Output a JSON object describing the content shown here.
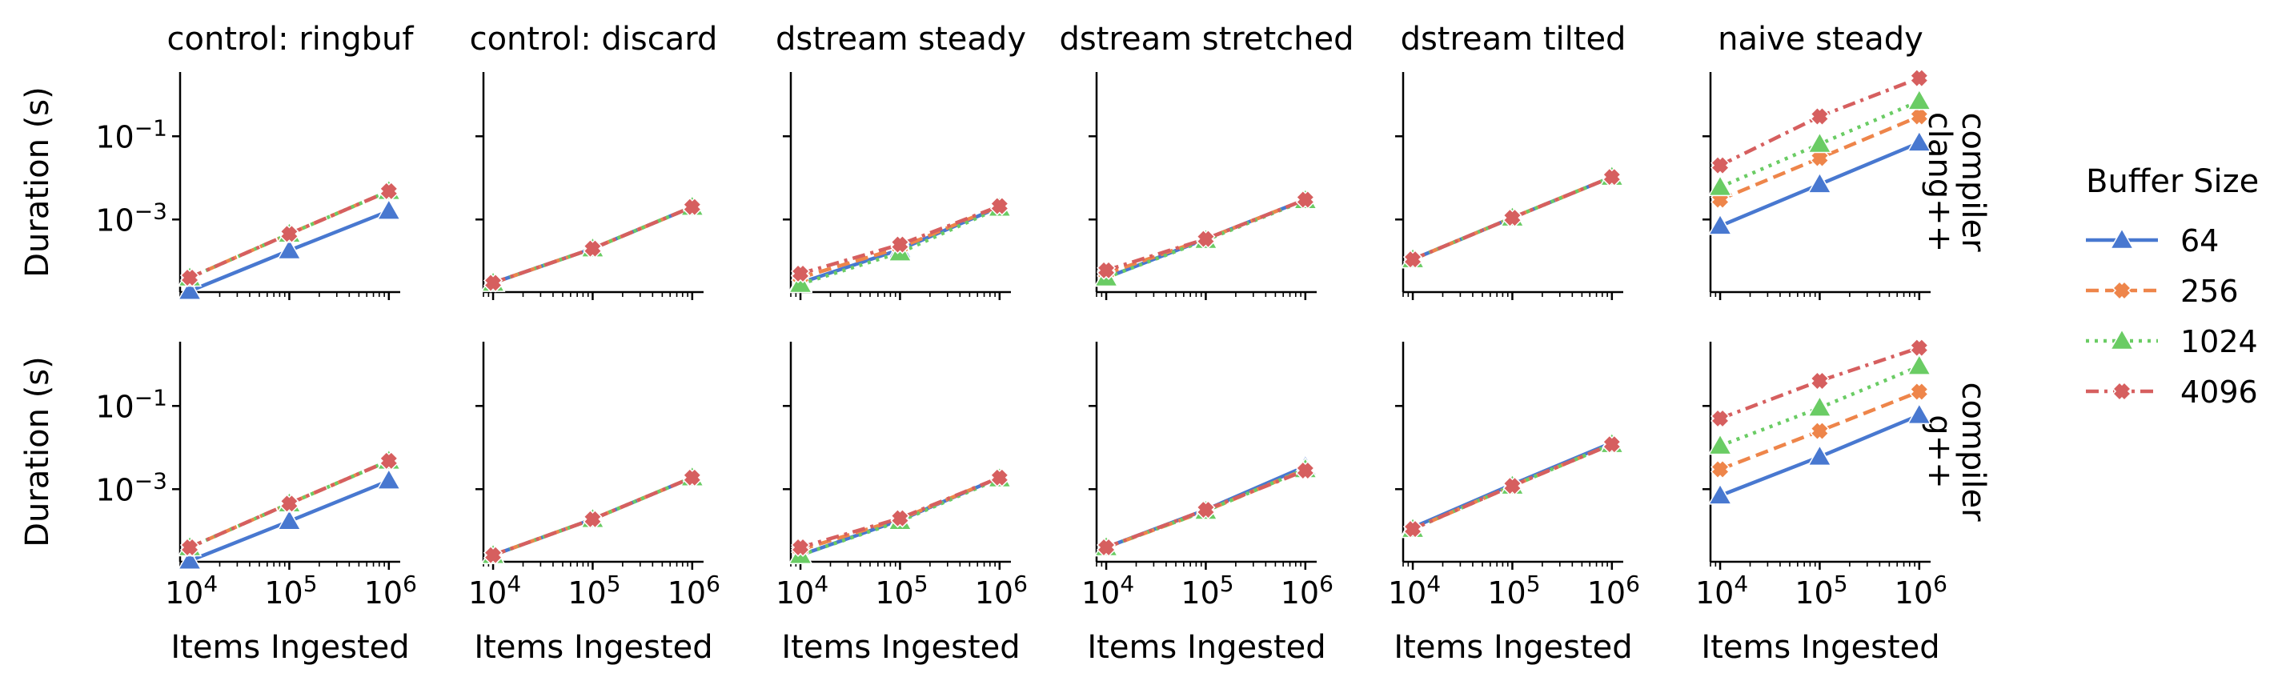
{
  "chart_data": {
    "type": "line",
    "ylabel": "Duration (s)",
    "xlabel": "Items Ingested",
    "xscale": "log",
    "yscale": "log",
    "x": [
      10000,
      100000,
      1000000
    ],
    "xticks": [
      {
        "value": 10000,
        "base": "10",
        "exp": "4"
      },
      {
        "value": 100000,
        "base": "10",
        "exp": "5"
      },
      {
        "value": 1000000,
        "base": "10",
        "exp": "6"
      }
    ],
    "yticks": [
      {
        "value": 0.001,
        "base": "10",
        "exp": "−3"
      },
      {
        "value": 0.1,
        "base": "10",
        "exp": "−1"
      }
    ],
    "xlim": [
      8000,
      1300000
    ],
    "ylim": [
      1.8e-05,
      3.5
    ],
    "legend": {
      "title": "Buffer Size",
      "placement": "right",
      "entries": [
        "64",
        "256",
        "1024",
        "4096"
      ]
    },
    "series_styles": [
      {
        "name": "64",
        "color": "#4878d0",
        "dash": "solid",
        "marker": "triangle"
      },
      {
        "name": "256",
        "color": "#ee854a",
        "dash": "dashed",
        "marker": "x"
      },
      {
        "name": "1024",
        "color": "#6acc64",
        "dash": "dotted",
        "marker": "triangle"
      },
      {
        "name": "4096",
        "color": "#d65f5f",
        "dash": "dashdot",
        "marker": "x"
      }
    ],
    "row_facet_label": "compiler",
    "rows": [
      "clang++",
      "g++"
    ],
    "columns": [
      "control: ringbuf",
      "control: discard",
      "dstream steady",
      "dstream stretched",
      "dstream tilted",
      "naive steady"
    ],
    "panels": [
      {
        "row": "clang++",
        "column": "control: ringbuf",
        "series": [
          [
            1.9e-05,
            0.00018,
            0.0016
          ],
          [
            4e-05,
            0.00045,
            0.0048
          ],
          [
            4e-05,
            0.00045,
            0.0048
          ],
          [
            4e-05,
            0.00045,
            0.0048
          ]
        ]
      },
      {
        "row": "clang++",
        "column": "control: discard",
        "series": [
          [
            3e-05,
            0.0002,
            0.002
          ],
          [
            3e-05,
            0.0002,
            0.002
          ],
          [
            3e-05,
            0.0002,
            0.002
          ],
          [
            3e-05,
            0.0002,
            0.002
          ]
        ]
      },
      {
        "row": "clang++",
        "column": "dstream steady",
        "series": [
          [
            3e-05,
            0.00019,
            0.002
          ],
          [
            4e-05,
            0.00021,
            0.0021
          ],
          [
            2.8e-05,
            0.00016,
            0.0019
          ],
          [
            5e-05,
            0.00025,
            0.0021
          ]
        ]
      },
      {
        "row": "clang++",
        "column": "dstream stretched",
        "series": [
          [
            4e-05,
            0.00034,
            0.003
          ],
          [
            5e-05,
            0.00034,
            0.003
          ],
          [
            4e-05,
            0.00032,
            0.0029
          ],
          [
            6e-05,
            0.00034,
            0.003
          ]
        ]
      },
      {
        "row": "clang++",
        "column": "dstream tilted",
        "series": [
          [
            0.00011,
            0.0011,
            0.0105
          ],
          [
            0.00011,
            0.0011,
            0.0105
          ],
          [
            0.00011,
            0.0011,
            0.0105
          ],
          [
            0.00011,
            0.0011,
            0.0105
          ]
        ]
      },
      {
        "row": "clang++",
        "column": "naive steady",
        "series": [
          [
            0.0007,
            0.007,
            0.07
          ],
          [
            0.003,
            0.03,
            0.3
          ],
          [
            0.006,
            0.065,
            0.7
          ],
          [
            0.02,
            0.3,
            2.5
          ]
        ]
      },
      {
        "row": "g++",
        "column": "control: ringbuf",
        "series": [
          [
            1.9e-05,
            0.00017,
            0.0016
          ],
          [
            4e-05,
            0.00045,
            0.0048
          ],
          [
            4e-05,
            0.00045,
            0.0048
          ],
          [
            4e-05,
            0.00045,
            0.0048
          ]
        ]
      },
      {
        "row": "g++",
        "column": "control: discard",
        "series": [
          [
            2.6e-05,
            0.00019,
            0.0019
          ],
          [
            2.6e-05,
            0.00019,
            0.0019
          ],
          [
            2.6e-05,
            0.00019,
            0.0019
          ],
          [
            2.6e-05,
            0.00019,
            0.0019
          ]
        ]
      },
      {
        "row": "g++",
        "column": "dstream steady",
        "series": [
          [
            2.6e-05,
            0.00018,
            0.0019
          ],
          [
            3.5e-05,
            0.00019,
            0.0019
          ],
          [
            2.6e-05,
            0.00017,
            0.0018
          ],
          [
            4e-05,
            0.0002,
            0.0019
          ]
        ]
      },
      {
        "row": "g++",
        "column": "dstream stretched",
        "series": [
          [
            4e-05,
            0.00032,
            0.0035
          ],
          [
            4e-05,
            0.0003,
            0.003
          ],
          [
            4e-05,
            0.0003,
            0.003
          ],
          [
            4e-05,
            0.00032,
            0.0028
          ]
        ]
      },
      {
        "row": "g++",
        "column": "dstream tilted",
        "series": [
          [
            0.00012,
            0.0013,
            0.013
          ],
          [
            0.00011,
            0.0012,
            0.012
          ],
          [
            0.00011,
            0.0012,
            0.012
          ],
          [
            0.00011,
            0.0012,
            0.012
          ]
        ]
      },
      {
        "row": "g++",
        "column": "naive steady",
        "series": [
          [
            0.0007,
            0.006,
            0.06
          ],
          [
            0.003,
            0.025,
            0.22
          ],
          [
            0.011,
            0.09,
            0.9
          ],
          [
            0.05,
            0.4,
            2.5
          ]
        ]
      }
    ]
  }
}
